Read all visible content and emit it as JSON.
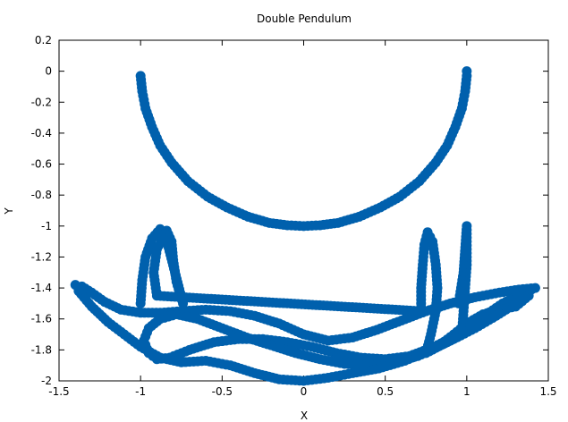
{
  "chart_data": {
    "type": "scatter",
    "title": "Double Pendulum",
    "xlabel": "X",
    "ylabel": "Y",
    "xlim": [
      -1.5,
      1.5
    ],
    "ylim": [
      -2,
      0.2
    ],
    "x_ticks": [
      -1.5,
      -1,
      -0.5,
      0,
      0.5,
      1,
      1.5
    ],
    "x_tick_labels": [
      "-1.5",
      "-1",
      "-0.5",
      "0",
      "0.5",
      "1",
      "1.5"
    ],
    "y_ticks": [
      0.2,
      0,
      -0.2,
      -0.4,
      -0.6,
      -0.8,
      -1,
      -1.2,
      -1.4,
      -1.6,
      -1.8,
      -2
    ],
    "y_tick_labels": [
      "0.2",
      "0",
      "-0.2",
      "-0.4",
      "-0.6",
      "-0.8",
      "-1",
      "-1.2",
      "-1.4",
      "-1.6",
      "-1.8",
      "-2"
    ],
    "grid": false,
    "marker_color": "#0060ad",
    "series": [
      {
        "points": [
          [
            -1.0,
            -0.03
          ],
          [
            -0.99,
            -0.13
          ],
          [
            -0.97,
            -0.24
          ],
          [
            -0.93,
            -0.36
          ],
          [
            -0.88,
            -0.48
          ],
          [
            -0.81,
            -0.59
          ],
          [
            -0.71,
            -0.71
          ],
          [
            -0.59,
            -0.81
          ],
          [
            -0.47,
            -0.88
          ],
          [
            -0.34,
            -0.94
          ],
          [
            -0.21,
            -0.98
          ],
          [
            -0.1,
            -0.995
          ],
          [
            0.0,
            -1.0
          ],
          [
            0.1,
            -0.995
          ],
          [
            0.21,
            -0.98
          ],
          [
            0.34,
            -0.94
          ],
          [
            0.47,
            -0.88
          ],
          [
            0.59,
            -0.81
          ],
          [
            0.71,
            -0.71
          ],
          [
            0.81,
            -0.59
          ],
          [
            0.88,
            -0.48
          ],
          [
            0.93,
            -0.36
          ],
          [
            0.97,
            -0.24
          ],
          [
            0.99,
            -0.13
          ],
          [
            1.0,
            -0.03
          ],
          [
            1.0,
            0.0
          ]
        ]
      },
      {
        "points": [
          [
            -1.4,
            -1.38
          ],
          [
            -1.36,
            -1.39
          ],
          [
            -1.3,
            -1.43
          ],
          [
            -1.22,
            -1.49
          ],
          [
            -1.12,
            -1.54
          ],
          [
            -1.0,
            -1.56
          ],
          [
            -0.88,
            -1.56
          ],
          [
            -0.75,
            -1.55
          ],
          [
            -0.6,
            -1.54
          ],
          [
            -0.45,
            -1.55
          ],
          [
            -0.3,
            -1.58
          ],
          [
            -0.15,
            -1.63
          ],
          [
            0.0,
            -1.7
          ],
          [
            0.15,
            -1.74
          ],
          [
            0.3,
            -1.72
          ],
          [
            0.45,
            -1.67
          ],
          [
            0.6,
            -1.61
          ],
          [
            0.75,
            -1.55
          ],
          [
            0.9,
            -1.5
          ],
          [
            1.05,
            -1.46
          ],
          [
            1.2,
            -1.43
          ],
          [
            1.32,
            -1.41
          ],
          [
            1.42,
            -1.4
          ],
          [
            1.35,
            -1.43
          ],
          [
            1.22,
            -1.5
          ],
          [
            1.08,
            -1.6
          ],
          [
            0.95,
            -1.7
          ],
          [
            0.8,
            -1.78
          ],
          [
            0.65,
            -1.84
          ],
          [
            0.5,
            -1.86
          ],
          [
            0.35,
            -1.85
          ],
          [
            0.2,
            -1.82
          ],
          [
            0.05,
            -1.78
          ],
          [
            -0.1,
            -1.75
          ],
          [
            -0.25,
            -1.73
          ],
          [
            -0.4,
            -1.73
          ],
          [
            -0.55,
            -1.75
          ],
          [
            -0.7,
            -1.8
          ],
          [
            -0.82,
            -1.85
          ],
          [
            -0.9,
            -1.86
          ],
          [
            -0.95,
            -1.82
          ],
          [
            -0.98,
            -1.74
          ],
          [
            -0.95,
            -1.66
          ],
          [
            -0.88,
            -1.6
          ],
          [
            -0.78,
            -1.57
          ],
          [
            -0.65,
            -1.6
          ],
          [
            -0.5,
            -1.66
          ],
          [
            -0.35,
            -1.72
          ],
          [
            -0.2,
            -1.77
          ],
          [
            -0.05,
            -1.82
          ],
          [
            0.1,
            -1.86
          ],
          [
            0.25,
            -1.89
          ],
          [
            0.4,
            -1.9
          ],
          [
            0.55,
            -1.88
          ],
          [
            0.7,
            -1.84
          ],
          [
            0.82,
            -1.78
          ],
          [
            0.92,
            -1.7
          ],
          [
            1.0,
            -1.63
          ],
          [
            1.1,
            -1.57
          ],
          [
            1.2,
            -1.54
          ],
          [
            1.3,
            -1.52
          ],
          [
            1.38,
            -1.45
          ],
          [
            1.3,
            -1.5
          ],
          [
            1.18,
            -1.58
          ],
          [
            1.05,
            -1.66
          ],
          [
            0.92,
            -1.73
          ],
          [
            0.78,
            -1.8
          ],
          [
            0.62,
            -1.87
          ],
          [
            0.46,
            -1.92
          ],
          [
            0.3,
            -1.95
          ],
          [
            0.15,
            -1.98
          ],
          [
            0.0,
            -2.0
          ],
          [
            -0.15,
            -1.99
          ],
          [
            -0.3,
            -1.95
          ],
          [
            -0.45,
            -1.9
          ],
          [
            -0.6,
            -1.87
          ],
          [
            -0.75,
            -1.88
          ],
          [
            -0.88,
            -1.85
          ],
          [
            -1.0,
            -1.78
          ],
          [
            -1.1,
            -1.7
          ],
          [
            -1.2,
            -1.62
          ],
          [
            -1.3,
            -1.52
          ],
          [
            -1.38,
            -1.42
          ]
        ]
      },
      {
        "points": [
          [
            -1.0,
            -1.5
          ],
          [
            -0.99,
            -1.35
          ],
          [
            -0.97,
            -1.2
          ],
          [
            -0.93,
            -1.08
          ],
          [
            -0.88,
            -1.02
          ],
          [
            -0.84,
            -1.03
          ],
          [
            -0.81,
            -1.1
          ],
          [
            -0.8,
            -1.22
          ],
          [
            -0.78,
            -1.36
          ],
          [
            -0.74,
            -1.5
          ],
          [
            -0.85,
            -1.05
          ],
          [
            -0.9,
            -1.15
          ],
          [
            -0.92,
            -1.3
          ],
          [
            -0.9,
            -1.45
          ],
          [
            0.72,
            -1.55
          ],
          [
            0.72,
            -1.4
          ],
          [
            0.73,
            -1.25
          ],
          [
            0.74,
            -1.12
          ],
          [
            0.76,
            -1.04
          ],
          [
            0.79,
            -1.1
          ],
          [
            0.81,
            -1.25
          ],
          [
            0.82,
            -1.4
          ],
          [
            0.81,
            -1.55
          ],
          [
            0.78,
            -1.7
          ],
          [
            0.75,
            -1.82
          ],
          [
            0.97,
            -1.7
          ],
          [
            0.98,
            -1.55
          ],
          [
            0.99,
            -1.4
          ],
          [
            1.0,
            -1.25
          ],
          [
            1.0,
            -1.1
          ],
          [
            1.0,
            -1.0
          ],
          [
            0.98,
            -1.3
          ],
          [
            0.95,
            -1.5
          ]
        ]
      }
    ]
  }
}
